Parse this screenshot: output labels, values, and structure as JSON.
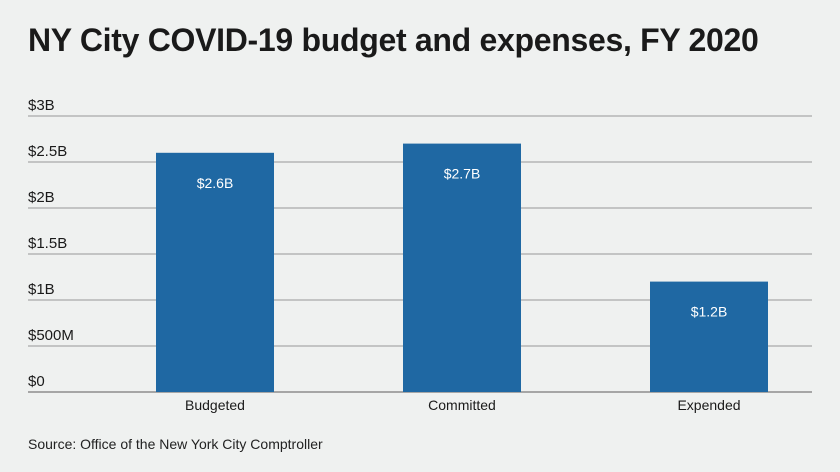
{
  "title": "NY City COVID-19 budget and expenses, FY 2020",
  "source": "Source: Office of the New York City Comptroller",
  "colors": {
    "bar": "#1f68a3",
    "grid": "#7a7a7a",
    "background": "#eff1f0"
  },
  "chart_data": {
    "type": "bar",
    "categories": [
      "Budgeted",
      "Committed",
      "Expended"
    ],
    "values": [
      2.6,
      2.7,
      1.2
    ],
    "unit": "billion USD",
    "data_labels": [
      "$2.6B",
      "$2.7B",
      "$1.2B"
    ],
    "ylim": [
      0,
      3
    ],
    "yticks": [
      0,
      0.5,
      1,
      1.5,
      2,
      2.5,
      3
    ],
    "ytick_labels": [
      "$0",
      "$500M",
      "$1B",
      "$1.5B",
      "$2B",
      "$2.5B",
      "$3B"
    ],
    "grid": true,
    "legend": "none"
  }
}
